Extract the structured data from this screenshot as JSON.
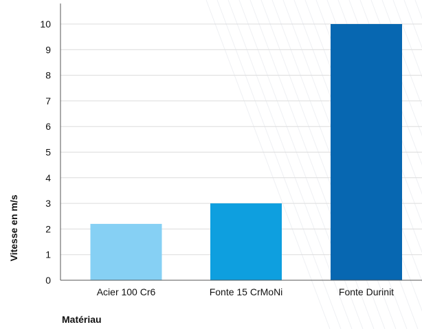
{
  "chart_data": {
    "type": "bar",
    "categories": [
      "Acier 100 Cr6",
      "Fonte 15 CrMoNi",
      "Fonte Durinit"
    ],
    "values": [
      2.2,
      3,
      10
    ],
    "title": "",
    "xlabel": "Matériau",
    "ylabel": "Vitesse en m/s",
    "ylim": [
      0,
      10.8
    ],
    "yticks": [
      0,
      1,
      2,
      3,
      4,
      5,
      6,
      7,
      8,
      9,
      10
    ],
    "grid": true,
    "legend": "none",
    "bar_colors": [
      "#86d0f4",
      "#0e9fdf",
      "#0767b1"
    ],
    "grid_color": "#dcdcdc",
    "axis_color": "#555555"
  }
}
